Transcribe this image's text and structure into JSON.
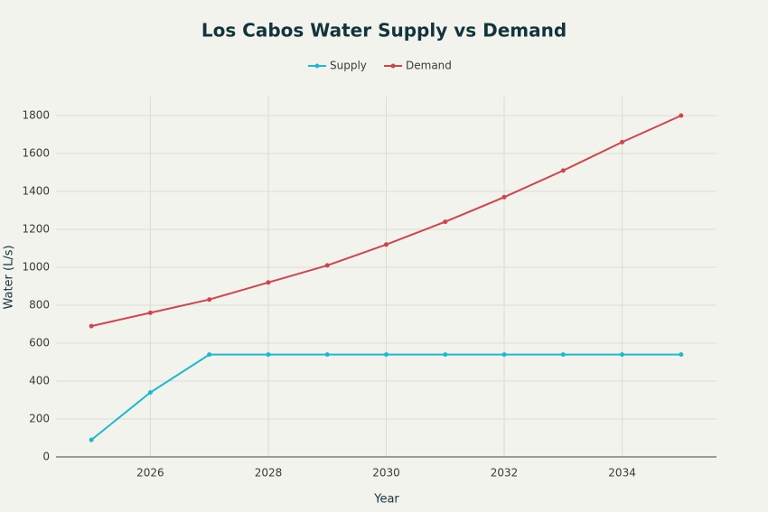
{
  "chart_data": {
    "type": "line",
    "title": "Los Cabos Water Supply vs Demand",
    "x_label": "Year",
    "y_label": "Water (L/s)",
    "x": [
      2025,
      2026,
      2027,
      2028,
      2029,
      2030,
      2031,
      2032,
      2033,
      2034,
      2035
    ],
    "series": [
      {
        "name": "Supply",
        "color": "#1fb8cd",
        "values": [
          90,
          340,
          540,
          540,
          540,
          540,
          540,
          540,
          540,
          540,
          540
        ]
      },
      {
        "name": "Demand",
        "color": "#d0454c",
        "values": [
          690,
          760,
          830,
          920,
          1010,
          1120,
          1240,
          1370,
          1510,
          1660,
          1800
        ]
      }
    ],
    "xlim": [
      2024.4,
      2035.6
    ],
    "xticks": [
      2026,
      2028,
      2030,
      2032,
      2034
    ],
    "ylim": [
      0,
      1900
    ],
    "yticks": [
      0,
      200,
      400,
      600,
      800,
      1000,
      1200,
      1400,
      1600,
      1800
    ],
    "grid": true,
    "legend": "top"
  }
}
